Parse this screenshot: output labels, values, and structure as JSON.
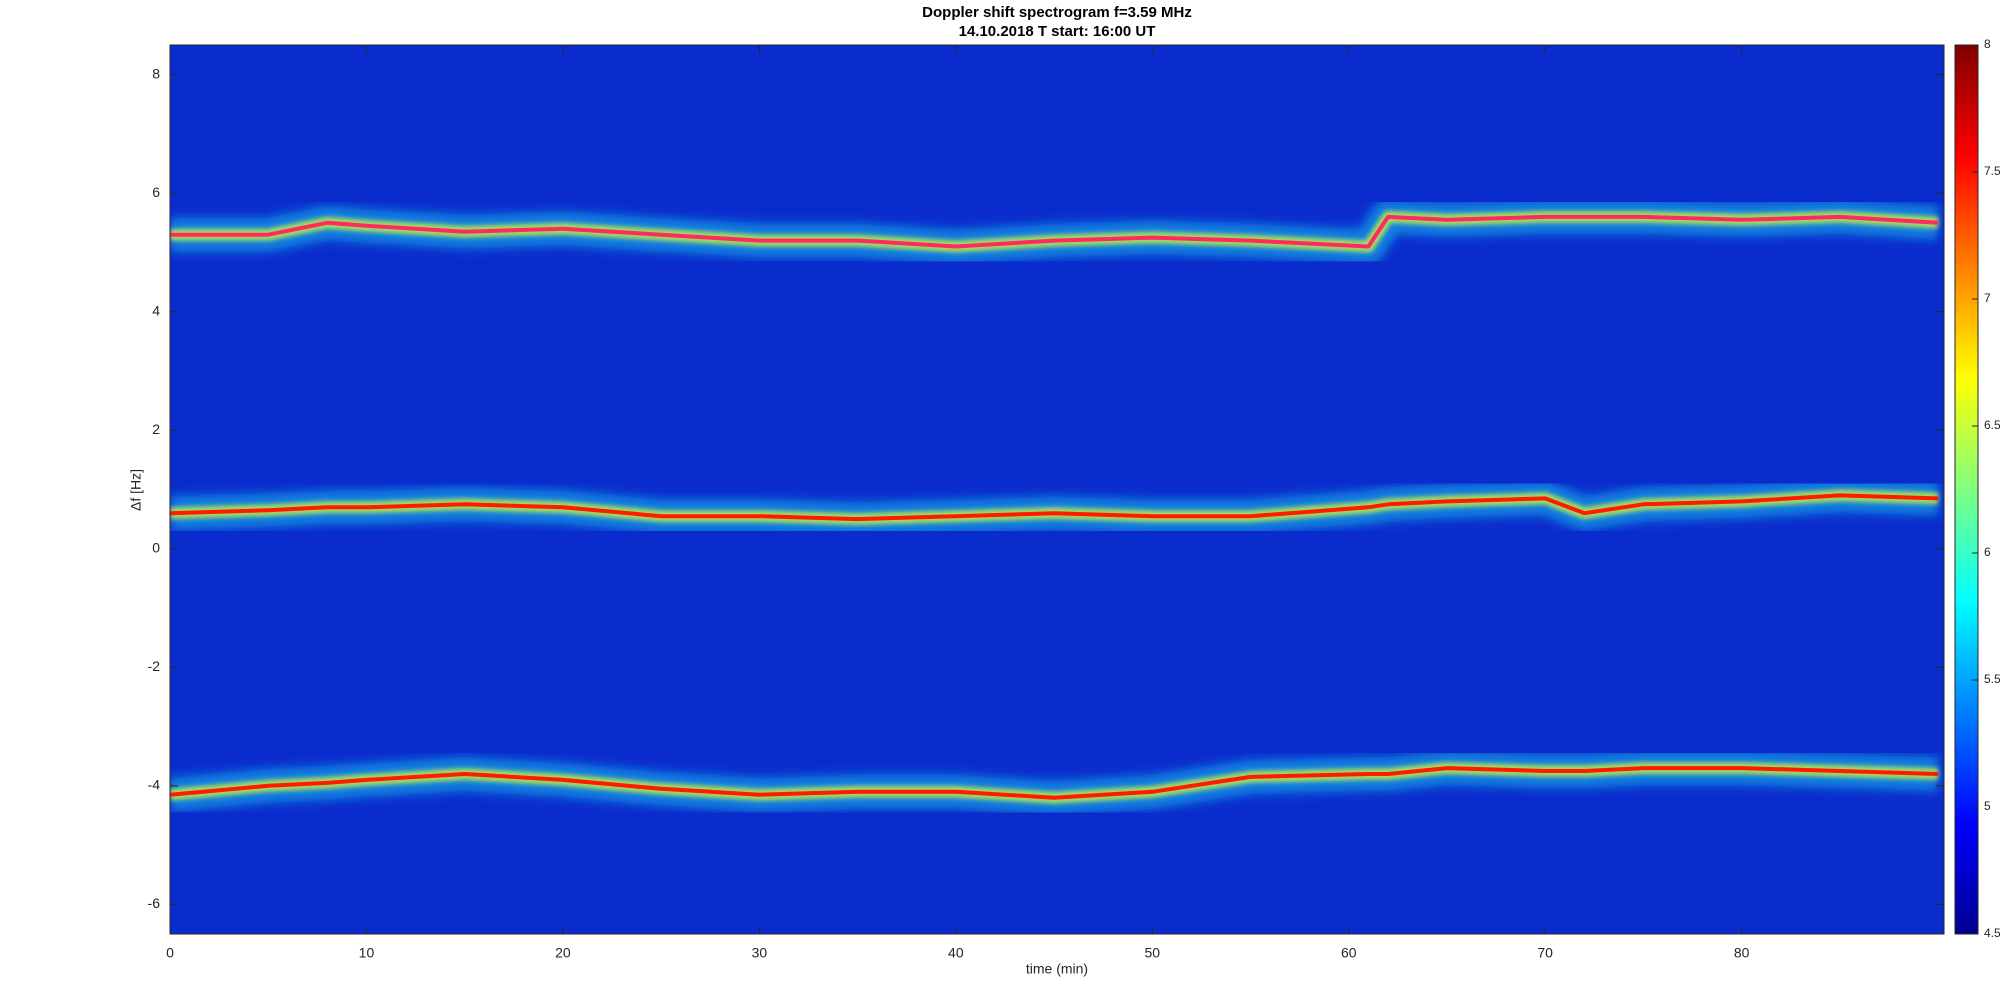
{
  "chart_data": {
    "type": "spectrogram",
    "title": [
      "Doppler shift spectrogram f=3.59 MHz",
      "14.10.2018   T start: 16:00 UT"
    ],
    "xlabel": "time (min)",
    "ylabel": "Δf [Hz]",
    "x": [
      0,
      5,
      8,
      10,
      15,
      20,
      25,
      30,
      35,
      40,
      45,
      50,
      55,
      61,
      62,
      65,
      70,
      72,
      75,
      80,
      85,
      90
    ],
    "series": [
      {
        "color": "#ff2a60",
        "values": [
          5.3,
          5.3,
          5.5,
          5.45,
          5.35,
          5.4,
          5.3,
          5.2,
          5.2,
          5.1,
          5.2,
          5.25,
          5.2,
          5.1,
          5.6,
          5.55,
          5.6,
          5.6,
          5.6,
          5.55,
          5.6,
          5.5
        ]
      },
      {
        "color": "#ff1a00",
        "values": [
          0.6,
          0.65,
          0.7,
          0.7,
          0.75,
          0.7,
          0.55,
          0.55,
          0.5,
          0.55,
          0.6,
          0.55,
          0.55,
          0.7,
          0.75,
          0.8,
          0.85,
          0.6,
          0.75,
          0.8,
          0.9,
          0.85
        ]
      },
      {
        "color": "#ff1a00",
        "values": [
          -4.15,
          -4.0,
          -3.95,
          -3.9,
          -3.8,
          -3.9,
          -4.05,
          -4.15,
          -4.1,
          -4.1,
          -4.2,
          -4.1,
          -3.85,
          -3.8,
          -3.8,
          -3.7,
          -3.75,
          -3.75,
          -3.7,
          -3.7,
          -3.75,
          -3.8
        ]
      }
    ],
    "xlim": [
      0,
      90.3
    ],
    "xticks": [
      0,
      10,
      20,
      30,
      40,
      50,
      60,
      70,
      80
    ],
    "ylim": [
      -6.5,
      8.5
    ],
    "yticks": [
      -6,
      -4,
      -2,
      0,
      2,
      4,
      6,
      8
    ],
    "background_color": "#0b2ccc",
    "colormap": "jet",
    "clim": [
      4.5,
      8
    ],
    "cticks": [
      4.5,
      5,
      5.5,
      6,
      6.5,
      7,
      7.5,
      8
    ]
  }
}
